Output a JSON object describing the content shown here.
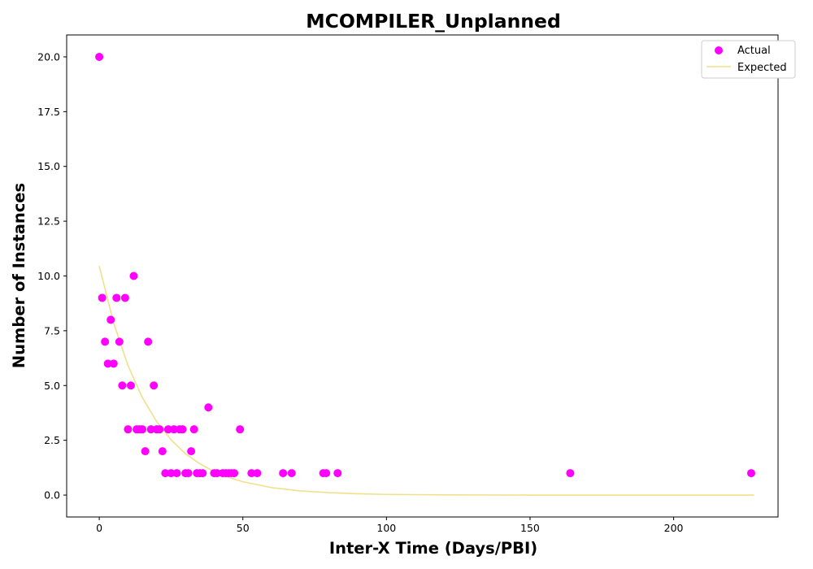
{
  "chart_data": {
    "type": "scatter",
    "title": "MCOMPILER_Unplanned",
    "xlabel": "Inter-X Time (Days/PBI)",
    "ylabel": "Number of Instances",
    "xlim": [
      -11.35,
      236.35
    ],
    "ylim": [
      -1.0,
      21.0
    ],
    "xticks": [
      0,
      50,
      100,
      150,
      200
    ],
    "yticks": [
      0.0,
      2.5,
      5.0,
      7.5,
      10.0,
      12.5,
      15.0,
      17.5,
      20.0
    ],
    "xtick_labels": [
      "0",
      "50",
      "100",
      "150",
      "200"
    ],
    "ytick_labels": [
      "0.0",
      "2.5",
      "5.0",
      "7.5",
      "10.0",
      "12.5",
      "15.0",
      "17.5",
      "20.0"
    ],
    "grid": false,
    "legend_position": "top-right",
    "series": [
      {
        "name": "Actual",
        "kind": "scatter",
        "color": "#ff00ff",
        "points": [
          [
            0,
            20
          ],
          [
            1,
            9
          ],
          [
            2,
            7
          ],
          [
            3,
            6
          ],
          [
            4,
            8
          ],
          [
            5,
            6
          ],
          [
            6,
            9
          ],
          [
            7,
            7
          ],
          [
            8,
            5
          ],
          [
            9,
            9
          ],
          [
            10,
            3
          ],
          [
            11,
            5
          ],
          [
            12,
            10
          ],
          [
            13,
            3
          ],
          [
            14,
            3
          ],
          [
            15,
            3
          ],
          [
            16,
            2
          ],
          [
            17,
            7
          ],
          [
            18,
            3
          ],
          [
            19,
            5
          ],
          [
            20,
            3
          ],
          [
            21,
            3
          ],
          [
            22,
            2
          ],
          [
            23,
            1
          ],
          [
            24,
            3
          ],
          [
            25,
            1
          ],
          [
            26,
            3
          ],
          [
            27,
            1
          ],
          [
            28,
            3
          ],
          [
            29,
            3
          ],
          [
            30,
            1
          ],
          [
            31,
            1
          ],
          [
            32,
            2
          ],
          [
            33,
            3
          ],
          [
            34,
            1
          ],
          [
            35,
            1
          ],
          [
            36,
            1
          ],
          [
            38,
            4
          ],
          [
            40,
            1
          ],
          [
            41,
            1
          ],
          [
            43,
            1
          ],
          [
            44,
            1
          ],
          [
            45,
            1
          ],
          [
            46,
            1
          ],
          [
            47,
            1
          ],
          [
            49,
            3
          ],
          [
            53,
            1
          ],
          [
            55,
            1
          ],
          [
            64,
            1
          ],
          [
            67,
            1
          ],
          [
            78,
            1
          ],
          [
            79,
            1
          ],
          [
            83,
            1
          ],
          [
            164,
            1
          ],
          [
            227,
            1
          ]
        ]
      },
      {
        "name": "Expected",
        "kind": "line",
        "color": "#f0e08a",
        "points": [
          [
            0,
            10.45
          ],
          [
            5,
            7.86
          ],
          [
            10,
            5.91
          ],
          [
            15,
            4.45
          ],
          [
            20,
            3.35
          ],
          [
            25,
            2.52
          ],
          [
            30,
            1.89
          ],
          [
            35,
            1.43
          ],
          [
            40,
            1.07
          ],
          [
            45,
            0.81
          ],
          [
            50,
            0.61
          ],
          [
            60,
            0.34
          ],
          [
            70,
            0.19
          ],
          [
            80,
            0.11
          ],
          [
            90,
            0.06
          ],
          [
            100,
            0.03
          ],
          [
            120,
            0.01
          ],
          [
            150,
            0.0
          ],
          [
            200,
            0.0
          ],
          [
            228,
            0.0
          ]
        ]
      }
    ]
  }
}
